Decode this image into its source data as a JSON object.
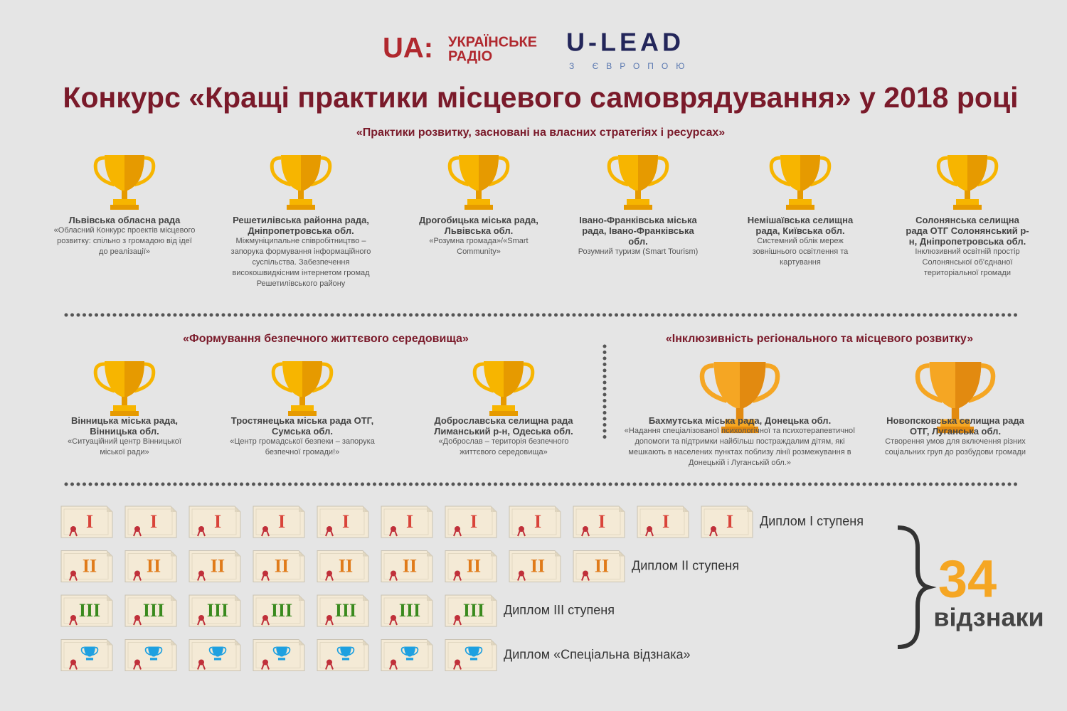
{
  "header": {
    "logo_ua": "UA:",
    "logo_radio_line1": "УКРАЇНСЬКЕ",
    "logo_radio_line2": "РАДІО",
    "logo_ulead": "U-LEAD",
    "logo_ulead_tagline": "З ЄВРОПОЮ",
    "title": "Конкурс «Кращі практики місцевого самоврядування» у 2018 році"
  },
  "sections": [
    {
      "heading": "«Практики розвитку, засновані на власних стратегіях і ресурсах»",
      "winners": [
        {
          "name": "Львівська обласна рада",
          "description": "«Обласний Конкурс проектів місцевого розвитку: спільно з громадою від ідеї до реалізації»"
        },
        {
          "name": "Решетилівська районна рада, Дніпропетровська обл.",
          "description": "Міжмуніципальне співробітництво – запорука формування інформаційного суспільства. Забезпечення високошвидкісним інтернетом громад Решетилівського району"
        },
        {
          "name": "Дрогобицька міська рада, Львівська обл.",
          "description": "«Розумна громада»/«Smart Community»"
        },
        {
          "name": "Івано-Франківська міська рада, Івано-Франківська обл.",
          "description": "Розумний туризм (Smart Tourism)"
        },
        {
          "name": "Немішаївська селищна рада, Київська обл.",
          "description": "Системний облік мереж зовнішнього освітлення та картування"
        },
        {
          "name": "Солонянська селищна рада ОТГ Солонянський р-н, Дніпропетровська обл.",
          "description": "Інклюзивний освітній простір Солонянської об'єднаної територіальної громади"
        }
      ]
    },
    {
      "heading": "«Формування безпечного життєвого середовища»",
      "winners": [
        {
          "name": "Вінницька міська рада, Вінницька обл.",
          "description": "«Ситуаційний центр Вінницької міської ради»"
        },
        {
          "name": "Тростянецька міська рада ОТГ, Сумська обл.",
          "description": "«Центр громадської безпеки – запорука безпечної громади!»"
        },
        {
          "name": "Доброславська селищна рада Лиманський р-н, Одеська обл.",
          "description": "«Доброслав – територія безпечного життєвого середовища»"
        }
      ]
    },
    {
      "heading": "«Інклюзивність регіонального та місцевого розвитку»",
      "winners": [
        {
          "name": "Бахмутська міська рада, Донецька обл.",
          "description": "«Надання спеціалізованої психологічної та психотерапевтичної допомоги та підтримки найбільш постраждалим дітям, які мешкають в населених пунктах поблизу лінії розмежування в Донецькій і Луганській обл.»"
        },
        {
          "name": "Новопсковська селищна рада ОТГ, Луганська обл.",
          "description": "Створення умов для включення різних соціальних груп до розбудови громади"
        }
      ]
    }
  ],
  "diplomas": {
    "rows": [
      {
        "numeral": "I",
        "count": 11,
        "label": "Диплом I ступеня"
      },
      {
        "numeral": "II",
        "count": 9,
        "label": "Диплом II ступеня"
      },
      {
        "numeral": "III",
        "count": 7,
        "label": "Диплом III ступеня"
      },
      {
        "count": 7,
        "label": "Диплом «Спеціальна відзнака»"
      }
    ],
    "total": 34,
    "total_label": "відзнаки"
  }
}
